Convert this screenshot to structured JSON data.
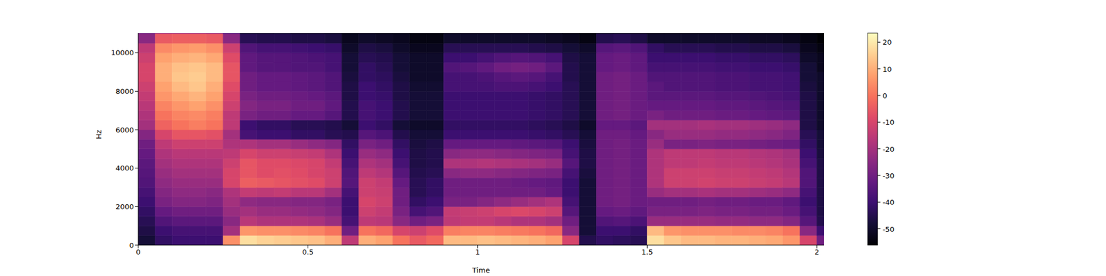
{
  "chart_data": {
    "type": "heatmap",
    "x_label": "Time",
    "y_label": "Hz",
    "xlim": [
      0,
      2.021
    ],
    "ylim": [
      0,
      11025
    ],
    "xticks": [
      0,
      0.5,
      1,
      1.5,
      2
    ],
    "yticks": [
      0,
      2000,
      4000,
      6000,
      8000,
      10000
    ],
    "cells": {
      "x_edges": [
        0,
        0.05,
        0.1,
        0.15,
        0.2,
        0.25,
        0.3,
        0.35,
        0.4,
        0.45,
        0.5,
        0.55,
        0.6,
        0.65,
        0.7,
        0.75,
        0.8,
        0.85,
        0.9,
        0.95,
        1.0,
        1.05,
        1.1,
        1.15,
        1.2,
        1.25,
        1.3,
        1.35,
        1.4,
        1.45,
        1.5,
        1.55,
        1.6,
        1.65,
        1.7,
        1.75,
        1.8,
        1.85,
        1.9,
        1.95,
        2.0,
        2.021
      ],
      "y_edges": [
        0,
        500,
        1000,
        1500,
        2000,
        2500,
        3000,
        3500,
        4000,
        4500,
        5000,
        5500,
        6000,
        6500,
        7000,
        7500,
        8000,
        8500,
        9000,
        9500,
        10000,
        10500,
        11000,
        11025
      ],
      "values": [
        [
          -48,
          -46,
          -44,
          -42,
          -40,
          -38,
          -36,
          -35,
          -34,
          -32,
          -30,
          -26,
          -20,
          -18,
          -16,
          -14,
          -12,
          -10,
          -10,
          -12,
          -15,
          -25,
          -30
        ],
        [
          -42,
          -40,
          -36,
          -32,
          -28,
          -26,
          -24,
          -22,
          -20,
          -18,
          -15,
          -10,
          -3,
          0,
          3,
          6,
          8,
          10,
          10,
          8,
          4,
          -5,
          -20
        ],
        [
          -40,
          -38,
          -34,
          -30,
          -26,
          -24,
          -22,
          -20,
          -18,
          -16,
          -12,
          -6,
          0,
          3,
          6,
          9,
          12,
          14,
          13,
          10,
          6,
          -4,
          -20
        ],
        [
          -40,
          -38,
          -34,
          -30,
          -26,
          -24,
          -22,
          -20,
          -18,
          -16,
          -12,
          -6,
          2,
          4,
          8,
          11,
          14,
          15,
          14,
          11,
          7,
          -4,
          -20
        ],
        [
          -40,
          -38,
          -34,
          -30,
          -27,
          -25,
          -22,
          -20,
          -18,
          -16,
          -12,
          -7,
          0,
          2,
          5,
          8,
          10,
          12,
          12,
          9,
          5,
          -5,
          -22
        ],
        [
          5,
          -20,
          -25,
          -22,
          -20,
          -18,
          -10,
          -10,
          -12,
          -15,
          -18,
          -20,
          -15,
          -15,
          -12,
          -10,
          -8,
          -6,
          -6,
          -8,
          -12,
          -25,
          -35
        ],
        [
          18,
          6,
          -16,
          -20,
          -24,
          -14,
          -4,
          -6,
          -6,
          -10,
          -18,
          -38,
          -40,
          -28,
          -26,
          -28,
          -30,
          -30,
          -33,
          -33,
          -36,
          -44,
          -50
        ],
        [
          16,
          5,
          -18,
          -22,
          -25,
          -15,
          -5,
          -8,
          -8,
          -12,
          -20,
          -40,
          -42,
          -30,
          -28,
          -30,
          -32,
          -32,
          -35,
          -35,
          -38,
          -45,
          -50
        ],
        [
          15,
          5,
          -18,
          -22,
          -25,
          -14,
          -6,
          -7,
          -8,
          -12,
          -20,
          -40,
          -42,
          -30,
          -28,
          -30,
          -32,
          -32,
          -35,
          -35,
          -38,
          -45,
          -50
        ],
        [
          14,
          4,
          -18,
          -23,
          -26,
          -16,
          -7,
          -8,
          -9,
          -13,
          -22,
          -42,
          -44,
          -32,
          -30,
          -31,
          -33,
          -33,
          -36,
          -36,
          -39,
          -46,
          -51
        ],
        [
          13,
          3,
          -19,
          -24,
          -26,
          -16,
          -8,
          -10,
          -10,
          -14,
          -24,
          -42,
          -44,
          -32,
          -30,
          -32,
          -34,
          -34,
          -36,
          -37,
          -40,
          -46,
          -51
        ],
        [
          10,
          0,
          -22,
          -26,
          -28,
          -20,
          -12,
          -12,
          -14,
          -18,
          -26,
          -44,
          -45,
          -35,
          -33,
          -34,
          -36,
          -36,
          -38,
          -38,
          -41,
          -47,
          -52
        ],
        [
          -15,
          -30,
          -38,
          -40,
          -40,
          -38,
          -35,
          -36,
          -38,
          -40,
          -42,
          -45,
          -48,
          -45,
          -45,
          -46,
          -46,
          -47,
          -48,
          -48,
          -50,
          -52,
          -54
        ],
        [
          10,
          0,
          -15,
          -12,
          -10,
          -12,
          -12,
          -15,
          -18,
          -22,
          -28,
          -35,
          -40,
          -38,
          -38,
          -40,
          -40,
          -42,
          -42,
          -44,
          -46,
          -50,
          -53
        ],
        [
          8,
          -2,
          -16,
          -14,
          -12,
          -13,
          -14,
          -17,
          -20,
          -24,
          -30,
          -37,
          -42,
          -40,
          -40,
          -41,
          -42,
          -43,
          -44,
          -45,
          -47,
          -51,
          -54
        ],
        [
          0,
          -10,
          -25,
          -28,
          -30,
          -30,
          -32,
          -35,
          -38,
          -40,
          -42,
          -45,
          -48,
          -45,
          -45,
          -46,
          -46,
          -47,
          -48,
          -48,
          -50,
          -52,
          -54
        ],
        [
          -5,
          -12,
          -30,
          -38,
          -42,
          -44,
          -44,
          -45,
          -46,
          -46,
          -47,
          -48,
          -50,
          -48,
          -48,
          -48,
          -49,
          -50,
          -50,
          -50,
          -52,
          -54,
          -55
        ],
        [
          -2,
          -8,
          -28,
          -36,
          -40,
          -42,
          -42,
          -44,
          -45,
          -45,
          -46,
          -48,
          -50,
          -48,
          -48,
          -48,
          -49,
          -50,
          -50,
          -50,
          -52,
          -54,
          -55
        ],
        [
          12,
          2,
          -15,
          -14,
          -28,
          -30,
          -30,
          -25,
          -18,
          -25,
          -32,
          -40,
          -42,
          -40,
          -40,
          -40,
          -38,
          -38,
          -36,
          -40,
          -44,
          -50,
          -53
        ],
        [
          12,
          3,
          -14,
          -13,
          -28,
          -30,
          -30,
          -24,
          -18,
          -24,
          -32,
          -40,
          -42,
          -40,
          -40,
          -40,
          -38,
          -38,
          -35,
          -40,
          -44,
          -50,
          -53
        ],
        [
          13,
          3,
          -14,
          -12,
          -26,
          -30,
          -30,
          -24,
          -17,
          -24,
          -32,
          -40,
          -42,
          -40,
          -40,
          -40,
          -38,
          -37,
          -33,
          -38,
          -44,
          -50,
          -53
        ],
        [
          12,
          2,
          -16,
          -10,
          -24,
          -30,
          -30,
          -25,
          -18,
          -25,
          -32,
          -40,
          -42,
          -40,
          -40,
          -40,
          -37,
          -35,
          -30,
          -36,
          -44,
          -50,
          -53
        ],
        [
          11,
          1,
          -18,
          -9,
          -22,
          -30,
          -31,
          -26,
          -19,
          -26,
          -33,
          -40,
          -42,
          -40,
          -40,
          -40,
          -37,
          -34,
          -29,
          -35,
          -44,
          -50,
          -53
        ],
        [
          10,
          0,
          -18,
          -10,
          -20,
          -30,
          -32,
          -27,
          -20,
          -27,
          -34,
          -41,
          -43,
          -41,
          -41,
          -41,
          -38,
          -35,
          -30,
          -36,
          -45,
          -50,
          -53
        ],
        [
          8,
          -2,
          -20,
          -12,
          -18,
          -32,
          -33,
          -28,
          -22,
          -28,
          -35,
          -42,
          -44,
          -42,
          -42,
          -42,
          -40,
          -38,
          -34,
          -38,
          -46,
          -51,
          -54
        ],
        [
          -10,
          -25,
          -30,
          -35,
          -38,
          -40,
          -40,
          -38,
          -35,
          -38,
          -40,
          -44,
          -46,
          -44,
          -44,
          -44,
          -44,
          -45,
          -45,
          -46,
          -48,
          -52,
          -55
        ],
        [
          -45,
          -48,
          -48,
          -48,
          -48,
          -48,
          -48,
          -47,
          -46,
          -46,
          -47,
          -48,
          -50,
          -48,
          -48,
          -48,
          -48,
          -48,
          -48,
          -48,
          -50,
          -54,
          -56
        ],
        [
          -42,
          -40,
          -36,
          -32,
          -30,
          -30,
          -30,
          -30,
          -30,
          -30,
          -30,
          -30,
          -32,
          -30,
          -30,
          -30,
          -30,
          -30,
          -32,
          -32,
          -35,
          -45,
          -52
        ],
        [
          -43,
          -40,
          -35,
          -31,
          -29,
          -29,
          -29,
          -29,
          -29,
          -29,
          -29,
          -30,
          -32,
          -29,
          -29,
          -29,
          -29,
          -29,
          -31,
          -31,
          -34,
          -44,
          -52
        ],
        [
          -44,
          -42,
          -37,
          -33,
          -31,
          -31,
          -31,
          -31,
          -31,
          -31,
          -31,
          -32,
          -34,
          -31,
          -31,
          -31,
          -31,
          -31,
          -33,
          -33,
          -36,
          -46,
          -53
        ],
        [
          18,
          12,
          -22,
          -28,
          -30,
          -22,
          -18,
          -18,
          -18,
          -18,
          -22,
          -25,
          -20,
          -28,
          -32,
          -34,
          -34,
          -36,
          -38,
          -40,
          -42,
          -50,
          -54
        ],
        [
          14,
          6,
          -22,
          -28,
          -30,
          -20,
          -12,
          -12,
          -15,
          -15,
          -28,
          -22,
          -20,
          -30,
          -32,
          -34,
          -36,
          -36,
          -38,
          -40,
          -44,
          -50,
          -54
        ],
        [
          12,
          5,
          -22,
          -28,
          -30,
          -20,
          -12,
          -12,
          -15,
          -15,
          -28,
          -22,
          -20,
          -30,
          -32,
          -34,
          -36,
          -36,
          -38,
          -40,
          -44,
          -50,
          -54
        ],
        [
          12,
          5,
          -22,
          -27,
          -29,
          -19,
          -11,
          -12,
          -14,
          -15,
          -27,
          -22,
          -19,
          -30,
          -32,
          -34,
          -36,
          -36,
          -38,
          -40,
          -44,
          -50,
          -54
        ],
        [
          11,
          5,
          -23,
          -28,
          -30,
          -20,
          -12,
          -13,
          -15,
          -16,
          -28,
          -23,
          -20,
          -31,
          -33,
          -35,
          -37,
          -37,
          -39,
          -41,
          -45,
          -50,
          -54
        ],
        [
          11,
          4,
          -23,
          -28,
          -30,
          -20,
          -12,
          -13,
          -15,
          -16,
          -28,
          -23,
          -20,
          -31,
          -33,
          -35,
          -37,
          -37,
          -39,
          -41,
          -45,
          -50,
          -54
        ],
        [
          10,
          4,
          -24,
          -29,
          -31,
          -21,
          -13,
          -14,
          -16,
          -17,
          -29,
          -24,
          -21,
          -32,
          -34,
          -36,
          -38,
          -38,
          -40,
          -42,
          -46,
          -51,
          -54
        ],
        [
          9,
          3,
          -24,
          -29,
          -31,
          -22,
          -14,
          -15,
          -17,
          -18,
          -30,
          -25,
          -22,
          -33,
          -35,
          -37,
          -38,
          -38,
          -40,
          -42,
          -46,
          -51,
          -54
        ],
        [
          6,
          0,
          -26,
          -31,
          -33,
          -24,
          -16,
          -17,
          -19,
          -20,
          -31,
          -27,
          -24,
          -34,
          -36,
          -38,
          -39,
          -39,
          -41,
          -43,
          -47,
          -52,
          -55
        ],
        [
          -10,
          -25,
          -35,
          -38,
          -40,
          -38,
          -36,
          -36,
          -38,
          -40,
          -42,
          -44,
          -46,
          -46,
          -46,
          -46,
          -47,
          -48,
          -48,
          -50,
          -52,
          -54,
          -55
        ],
        [
          -30,
          -40,
          -45,
          -46,
          -46,
          -46,
          -46,
          -46,
          -46,
          -47,
          -48,
          -48,
          -50,
          -50,
          -50,
          -50,
          -50,
          -50,
          -52,
          -52,
          -54,
          -56,
          -56
        ]
      ]
    },
    "colorbar": {
      "range": [
        -56.1,
        23.4
      ],
      "ticks": [
        -50,
        -40,
        -30,
        -20,
        -10,
        0,
        10,
        20
      ]
    }
  }
}
